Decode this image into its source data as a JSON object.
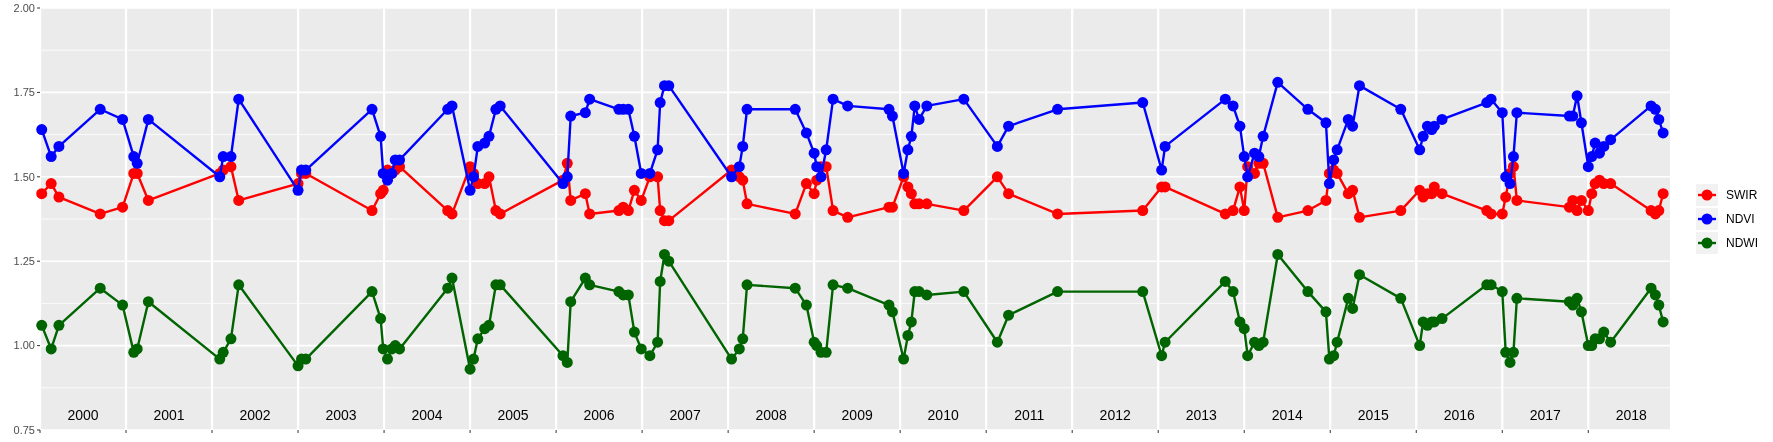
{
  "chart_data": {
    "type": "line",
    "marker": "circle",
    "line_style": "solid",
    "grid": true,
    "legend": "right",
    "xlim": [
      2000,
      2018.95
    ],
    "xticks": [
      {
        "value": 2000,
        "label": null
      },
      {
        "value": 2001,
        "label": null
      },
      {
        "value": 2002,
        "label": null
      },
      {
        "value": 2003,
        "label": null
      },
      {
        "value": 2004,
        "label": null
      },
      {
        "value": 2005,
        "label": null
      },
      {
        "value": 2006,
        "label": null
      },
      {
        "value": 2007,
        "label": null
      },
      {
        "value": 2008,
        "label": null
      },
      {
        "value": 2009,
        "label": null
      },
      {
        "value": 2010,
        "label": null
      },
      {
        "value": 2011,
        "label": null
      },
      {
        "value": 2012,
        "label": null
      },
      {
        "value": 2013,
        "label": null
      },
      {
        "value": 2014,
        "label": null
      },
      {
        "value": 2015,
        "label": null
      },
      {
        "value": 2016,
        "label": null
      },
      {
        "value": 2017,
        "label": null
      },
      {
        "value": 2018,
        "label": null
      },
      {
        "value": 2000.5,
        "label": "2000"
      },
      {
        "value": 2001.5,
        "label": "2001"
      },
      {
        "value": 2002.5,
        "label": "2002"
      },
      {
        "value": 2003.5,
        "label": "2003"
      },
      {
        "value": 2004.5,
        "label": "2004"
      },
      {
        "value": 2005.5,
        "label": "2005"
      },
      {
        "value": 2006.5,
        "label": "2006"
      },
      {
        "value": 2007.5,
        "label": "2007"
      },
      {
        "value": 2008.5,
        "label": "2008"
      },
      {
        "value": 2009.5,
        "label": "2009"
      },
      {
        "value": 2010.5,
        "label": "2010"
      },
      {
        "value": 2011.5,
        "label": "2011"
      },
      {
        "value": 2012.5,
        "label": "2012"
      },
      {
        "value": 2013.5,
        "label": "2013"
      },
      {
        "value": 2014.5,
        "label": "2014"
      },
      {
        "value": 2015.5,
        "label": "2015"
      },
      {
        "value": 2016.5,
        "label": "2016"
      },
      {
        "value": 2017.5,
        "label": "2017"
      },
      {
        "value": 2018.5,
        "label": "2018"
      }
    ],
    "ylim": [
      0.75,
      2
    ],
    "yticks": [
      {
        "value": 0.75,
        "label": "0.75"
      },
      {
        "value": 1,
        "label": "1.00"
      },
      {
        "value": 1.25,
        "label": "1.25"
      },
      {
        "value": 1.5,
        "label": "1.50"
      },
      {
        "value": 1.75,
        "label": "1.75"
      },
      {
        "value": 2,
        "label": "2.00"
      }
    ],
    "x": [
      2000.02,
      2000.13,
      2000.22,
      2000.7,
      2000.96,
      2001.09,
      2001.13,
      2001.26,
      2002.09,
      2002.13,
      2002.22,
      2002.31,
      2003.0,
      2003.04,
      2003.09,
      2003.86,
      2003.96,
      2003.99,
      2004.04,
      2004.09,
      2004.13,
      2004.18,
      2004.74,
      2004.79,
      2005.0,
      2005.04,
      2005.09,
      2005.17,
      2005.22,
      2005.3,
      2005.35,
      2006.08,
      2006.13,
      2006.17,
      2006.34,
      2006.39,
      2006.73,
      2006.78,
      2006.84,
      2006.91,
      2006.99,
      2007.09,
      2007.18,
      2007.21,
      2007.26,
      2007.31,
      2008.04,
      2008.13,
      2008.17,
      2008.22,
      2008.78,
      2008.91,
      2009.0,
      2009.03,
      2009.08,
      2009.14,
      2009.22,
      2009.39,
      2009.87,
      2009.91,
      2010.04,
      2010.09,
      2010.13,
      2010.17,
      2010.22,
      2010.31,
      2010.74,
      2011.13,
      2011.26,
      2011.83,
      2012.82,
      2013.04,
      2013.08,
      2013.78,
      2013.87,
      2013.95,
      2014.0,
      2014.04,
      2014.12,
      2014.17,
      2014.22,
      2014.39,
      2014.74,
      2014.95,
      2014.99,
      2015.04,
      2015.08,
      2015.21,
      2015.26,
      2015.34,
      2015.82,
      2016.04,
      2016.08,
      2016.13,
      2016.18,
      2016.21,
      2016.3,
      2016.82,
      2016.87,
      2017.0,
      2017.04,
      2017.09,
      2017.13,
      2017.17,
      2017.78,
      2017.82,
      2017.87,
      2017.92,
      2018.0,
      2018.04,
      2018.08,
      2018.13,
      2018.18,
      2018.26,
      2018.73,
      2018.78,
      2018.82,
      2018.87
    ],
    "series": [
      {
        "name": "SWIR",
        "color": "#ff0000",
        "values": [
          1.45,
          1.48,
          1.44,
          1.39,
          1.41,
          1.51,
          1.51,
          1.43,
          1.51,
          1.52,
          1.53,
          1.43,
          1.48,
          1.51,
          1.51,
          1.4,
          1.45,
          1.46,
          1.52,
          1.51,
          1.52,
          1.53,
          1.4,
          1.39,
          1.53,
          1.51,
          1.48,
          1.48,
          1.5,
          1.4,
          1.39,
          1.49,
          1.54,
          1.43,
          1.45,
          1.39,
          1.4,
          1.41,
          1.4,
          1.46,
          1.43,
          1.5,
          1.5,
          1.4,
          1.37,
          1.37,
          1.52,
          1.5,
          1.49,
          1.42,
          1.39,
          1.48,
          1.45,
          1.49,
          1.53,
          1.53,
          1.4,
          1.38,
          1.41,
          1.41,
          1.5,
          1.47,
          1.45,
          1.42,
          1.42,
          1.42,
          1.4,
          1.5,
          1.45,
          1.39,
          1.4,
          1.47,
          1.47,
          1.39,
          1.4,
          1.47,
          1.4,
          1.53,
          1.51,
          1.54,
          1.54,
          1.38,
          1.4,
          1.43,
          1.51,
          1.52,
          1.51,
          1.45,
          1.46,
          1.38,
          1.4,
          1.46,
          1.44,
          1.45,
          1.45,
          1.47,
          1.45,
          1.4,
          1.39,
          1.39,
          1.44,
          1.51,
          1.53,
          1.43,
          1.41,
          1.43,
          1.4,
          1.43,
          1.4,
          1.45,
          1.48,
          1.49,
          1.48,
          1.48,
          1.4,
          1.39,
          1.4,
          1.45
        ]
      },
      {
        "name": "NDVI",
        "color": "#0000ff",
        "values": [
          1.64,
          1.56,
          1.59,
          1.7,
          1.67,
          1.56,
          1.54,
          1.67,
          1.5,
          1.56,
          1.56,
          1.73,
          1.46,
          1.52,
          1.52,
          1.7,
          1.62,
          1.51,
          1.49,
          1.51,
          1.55,
          1.55,
          1.7,
          1.71,
          1.46,
          1.5,
          1.59,
          1.6,
          1.62,
          1.7,
          1.71,
          1.48,
          1.5,
          1.68,
          1.69,
          1.73,
          1.7,
          1.7,
          1.7,
          1.62,
          1.51,
          1.51,
          1.58,
          1.72,
          1.77,
          1.77,
          1.5,
          1.53,
          1.59,
          1.7,
          1.7,
          1.63,
          1.57,
          1.53,
          1.5,
          1.58,
          1.73,
          1.71,
          1.7,
          1.68,
          1.51,
          1.58,
          1.62,
          1.71,
          1.67,
          1.71,
          1.73,
          1.59,
          1.65,
          1.7,
          1.72,
          1.52,
          1.59,
          1.73,
          1.71,
          1.65,
          1.56,
          1.5,
          1.57,
          1.56,
          1.62,
          1.78,
          1.7,
          1.66,
          1.48,
          1.55,
          1.58,
          1.67,
          1.65,
          1.77,
          1.7,
          1.58,
          1.62,
          1.65,
          1.64,
          1.65,
          1.67,
          1.72,
          1.73,
          1.69,
          1.5,
          1.48,
          1.56,
          1.69,
          1.68,
          1.68,
          1.74,
          1.66,
          1.53,
          1.56,
          1.6,
          1.57,
          1.59,
          1.61,
          1.71,
          1.7,
          1.67,
          1.63
        ]
      },
      {
        "name": "NDWI",
        "color": "#006400",
        "values": [
          1.06,
          0.99,
          1.06,
          1.17,
          1.12,
          0.98,
          0.99,
          1.13,
          0.96,
          0.98,
          1.02,
          1.18,
          0.94,
          0.96,
          0.96,
          1.16,
          1.08,
          0.99,
          0.96,
          0.99,
          1.0,
          0.99,
          1.17,
          1.2,
          0.93,
          0.96,
          1.02,
          1.05,
          1.06,
          1.18,
          1.18,
          0.97,
          0.95,
          1.13,
          1.2,
          1.18,
          1.16,
          1.15,
          1.15,
          1.04,
          0.99,
          0.97,
          1.01,
          1.19,
          1.27,
          1.25,
          0.96,
          0.99,
          1.02,
          1.18,
          1.17,
          1.12,
          1.01,
          1.0,
          0.98,
          0.98,
          1.18,
          1.17,
          1.12,
          1.1,
          0.96,
          1.03,
          1.07,
          1.16,
          1.16,
          1.15,
          1.16,
          1.01,
          1.09,
          1.16,
          1.16,
          0.97,
          1.01,
          1.19,
          1.16,
          1.07,
          1.05,
          0.97,
          1.01,
          1.0,
          1.01,
          1.27,
          1.16,
          1.1,
          0.96,
          0.97,
          1.01,
          1.14,
          1.11,
          1.21,
          1.14,
          1.0,
          1.07,
          1.06,
          1.07,
          1.07,
          1.08,
          1.18,
          1.18,
          1.16,
          0.98,
          0.95,
          0.98,
          1.14,
          1.13,
          1.12,
          1.14,
          1.1,
          1.0,
          1.0,
          1.02,
          1.02,
          1.04,
          1.01,
          1.17,
          1.15,
          1.12,
          1.07
        ]
      }
    ]
  }
}
